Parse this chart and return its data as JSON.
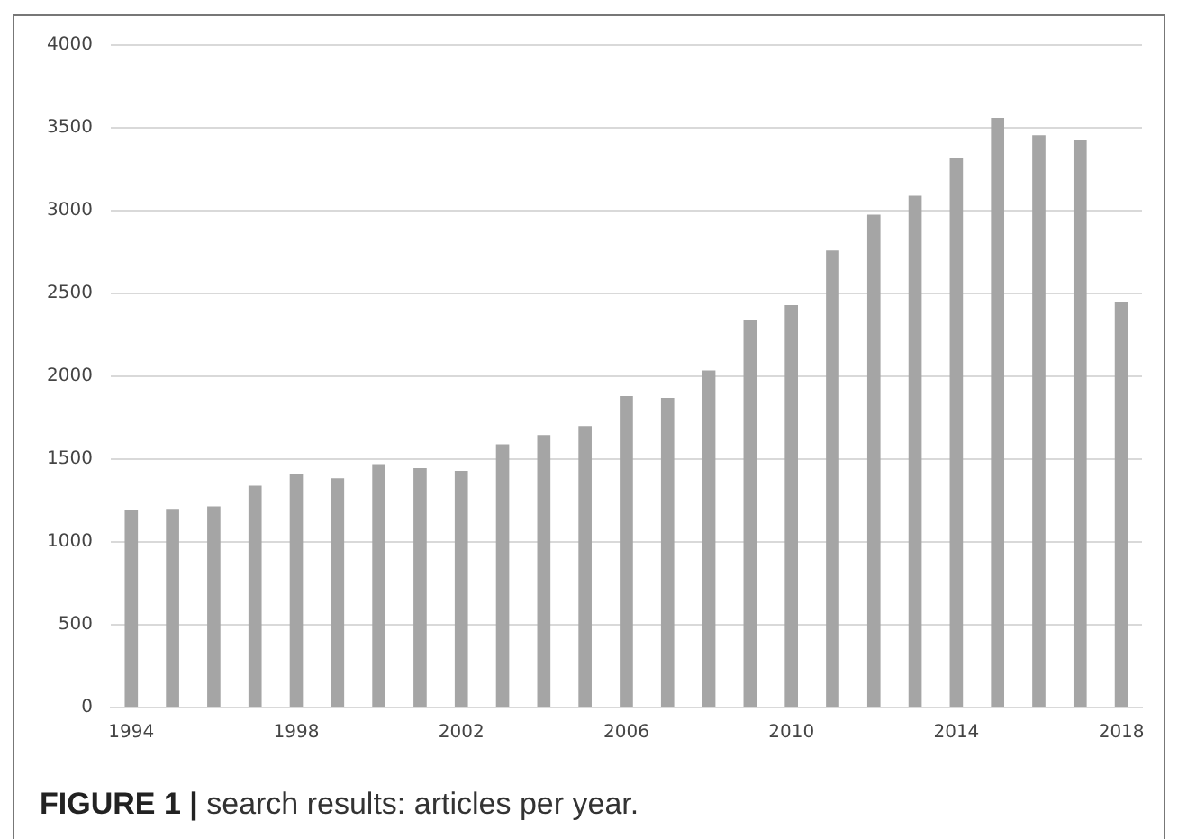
{
  "chart_data": {
    "type": "bar",
    "categories": [
      "1994",
      null,
      null,
      null,
      "1998",
      null,
      null,
      null,
      "2002",
      null,
      null,
      null,
      "2006",
      null,
      null,
      null,
      "2010",
      null,
      null,
      null,
      "2014",
      null,
      null,
      null,
      "2018"
    ],
    "values": [
      1190,
      1200,
      1215,
      1340,
      1410,
      1385,
      1470,
      1445,
      1430,
      1590,
      1645,
      1700,
      1880,
      1870,
      2035,
      2340,
      2430,
      2760,
      2975,
      3090,
      3320,
      3560,
      3455,
      3425,
      2445
    ],
    "color": "#a5a5a5",
    "ylim": [
      0,
      4000
    ],
    "yticks": [
      0,
      500,
      1000,
      1500,
      2000,
      2500,
      3000,
      3500,
      4000
    ],
    "grid": "y",
    "annotations": [
      "FIGURE 1 | search results: articles per year."
    ]
  }
}
